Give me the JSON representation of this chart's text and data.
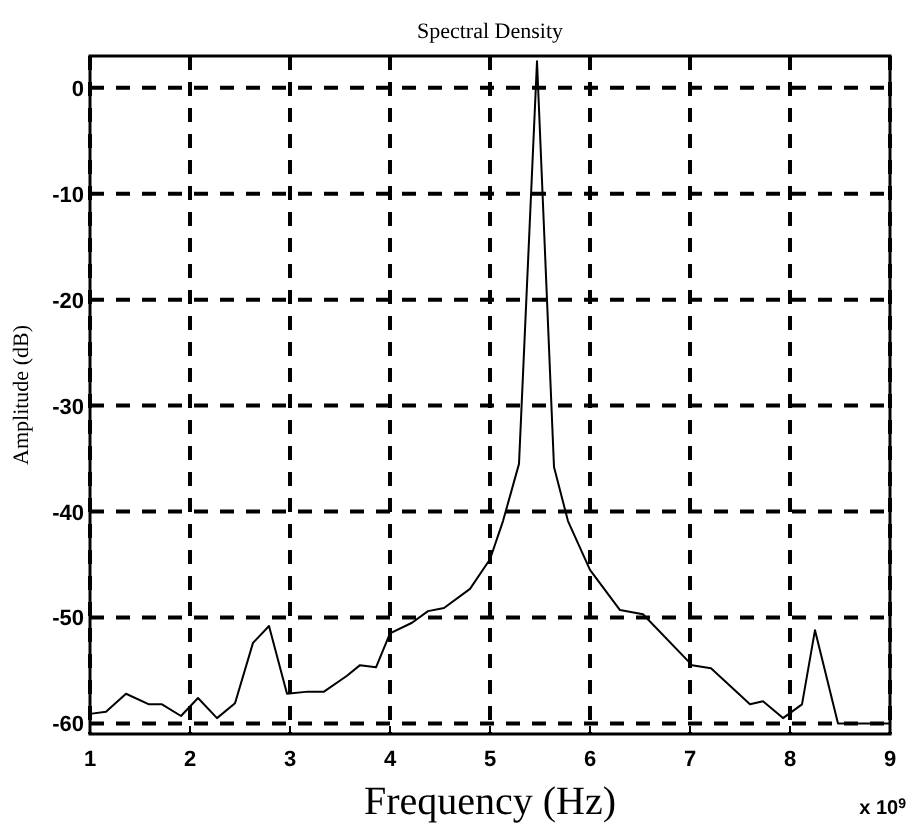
{
  "chart_data": {
    "type": "line",
    "title": "Spectral Density",
    "xlabel": "Frequency (Hz)",
    "ylabel": "Amplitude (dB)",
    "annotations": [
      "x 10$^{9}$"
    ],
    "xlim": [
      1,
      9
    ],
    "xticks": [
      1,
      2,
      3,
      4,
      5,
      6,
      7,
      8,
      9
    ],
    "ylim": [
      -61,
      3
    ],
    "yticks": [
      -60,
      -50,
      -40,
      -30,
      -20,
      -10,
      0
    ],
    "grid": true,
    "marker": "none",
    "line_style": "solid",
    "series": [
      {
        "color": "#000000",
        "x": [
          1,
          1.16,
          1.36,
          1.59,
          1.72,
          1.91,
          2.08,
          2.27,
          2.45,
          2.63,
          2.79,
          2.97,
          3.18,
          3.34,
          3.57,
          3.7,
          3.86,
          4.0,
          4.22,
          4.38,
          4.54,
          4.8,
          5.0,
          5.13,
          5.29,
          5.47,
          5.64,
          5.78,
          6.0,
          6.3,
          6.53,
          7.02,
          7.21,
          7.6,
          7.73,
          7.93,
          8.12,
          8.25,
          8.48,
          9
        ],
        "values": [
          -59.1,
          -58.9,
          -57.2,
          -58.2,
          -58.2,
          -59.3,
          -57.6,
          -59.5,
          -58.1,
          -52.4,
          -50.8,
          -57.2,
          -57.0,
          -57.0,
          -55.5,
          -54.5,
          -54.7,
          -51.5,
          -50.5,
          -49.4,
          -49.1,
          -47.3,
          -44.5,
          -40.9,
          -35.5,
          2.5,
          -35.8,
          -40.9,
          -45.5,
          -49.3,
          -49.7,
          -54.5,
          -54.8,
          -58.2,
          -57.9,
          -59.5,
          -58.2,
          -51.2,
          -60,
          -60
        ]
      }
    ]
  }
}
